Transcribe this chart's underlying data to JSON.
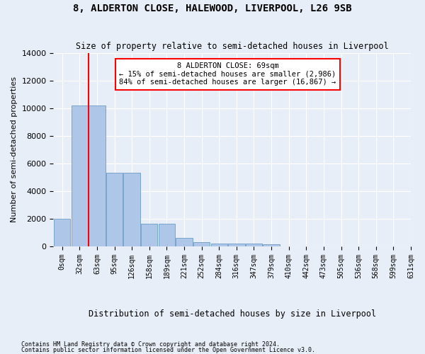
{
  "title": "8, ALDERTON CLOSE, HALEWOOD, LIVERPOOL, L26 9SB",
  "subtitle": "Size of property relative to semi-detached houses in Liverpool",
  "xlabel": "Distribution of semi-detached houses by size in Liverpool",
  "ylabel": "Number of semi-detached properties",
  "bar_values": [
    2000,
    10200,
    10200,
    5300,
    5300,
    1600,
    1600,
    600,
    270,
    200,
    170,
    160,
    130,
    0,
    0,
    0,
    0,
    0,
    0,
    0
  ],
  "bar_labels": [
    "0sqm",
    "32sqm",
    "63sqm",
    "95sqm",
    "126sqm",
    "158sqm",
    "189sqm",
    "221sqm",
    "252sqm",
    "284sqm",
    "316sqm",
    "347sqm",
    "379sqm",
    "410sqm",
    "442sqm",
    "473sqm",
    "505sqm",
    "536sqm",
    "568sqm",
    "599sqm"
  ],
  "xtick_extra": "631sqm",
  "bar_color": "#aec6e8",
  "bar_edge_color": "#5a8fc0",
  "vline_color": "red",
  "vline_pos": 1.5,
  "annotation_text_line1": "8 ALDERTON CLOSE: 69sqm",
  "annotation_text_line2": "← 15% of semi-detached houses are smaller (2,986)",
  "annotation_text_line3": "84% of semi-detached houses are larger (16,867) →",
  "ylim": [
    0,
    14000
  ],
  "yticks": [
    0,
    2000,
    4000,
    6000,
    8000,
    10000,
    12000,
    14000
  ],
  "footnote1": "Contains HM Land Registry data © Crown copyright and database right 2024.",
  "footnote2": "Contains public sector information licensed under the Open Government Licence v3.0.",
  "bg_color": "#e8eef7",
  "grid_color": "#ffffff"
}
